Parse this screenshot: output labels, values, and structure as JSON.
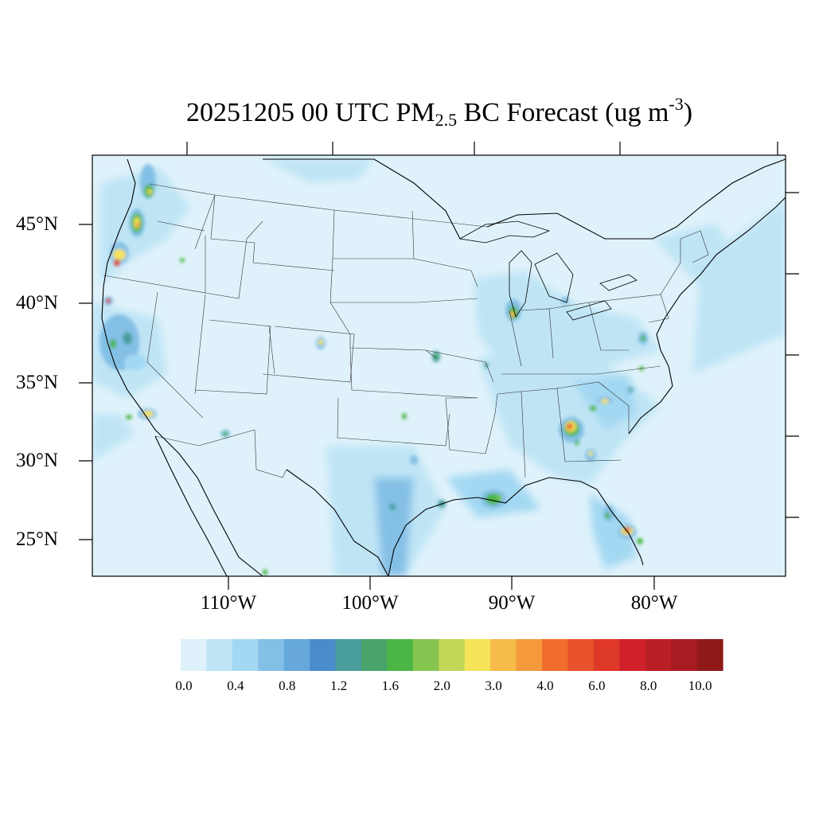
{
  "title": {
    "prefix": "20251205 00 UTC PM",
    "subscript": "2.5",
    "middle": " BC Forecast (ug m",
    "superscript": "-3",
    "suffix": ")"
  },
  "map": {
    "projection": "lambert-conformal",
    "region": "Contiguous United States",
    "lat_labels": [
      "45°N",
      "40°N",
      "35°N",
      "30°N",
      "25°N"
    ],
    "lon_labels": [
      "110°W",
      "100°W",
      "90°W",
      "80°W"
    ],
    "background_value_color": "#dff2fb",
    "hotspots": [
      {
        "place": "Seattle / Puget Sound",
        "max_level": "2.0"
      },
      {
        "place": "Portland, Oregon",
        "max_level": "4.0"
      },
      {
        "place": "Willamette Valley",
        "max_level": "6.0"
      },
      {
        "place": "Northern California coast",
        "max_level": "8.0"
      },
      {
        "place": "Central Valley, California",
        "max_level": "2.0"
      },
      {
        "place": "Los Angeles",
        "max_level": "3.0"
      },
      {
        "place": "Chicago",
        "max_level": "4.0"
      },
      {
        "place": "Atlanta",
        "max_level": "8.0"
      },
      {
        "place": "Southeast Louisiana",
        "max_level": "2.0"
      },
      {
        "place": "South Florida",
        "max_level": "8.0"
      }
    ]
  },
  "colorbar": {
    "labels": [
      "0.0",
      "0.4",
      "0.8",
      "1.2",
      "1.6",
      "2.0",
      "3.0",
      "4.0",
      "6.0",
      "8.0",
      "10.0"
    ],
    "colors": [
      "#dff2fb",
      "#bfe5f5",
      "#a3d8f2",
      "#84c0e6",
      "#66a8da",
      "#4a8bcc",
      "#4a9e9e",
      "#48a46a",
      "#4bb546",
      "#86c54f",
      "#c2d657",
      "#f5e35a",
      "#f7bb4a",
      "#f49a3d",
      "#f06d2d",
      "#e8522b",
      "#de3828",
      "#d0202a",
      "#bb1f26",
      "#a81b20",
      "#8f1a19"
    ]
  }
}
